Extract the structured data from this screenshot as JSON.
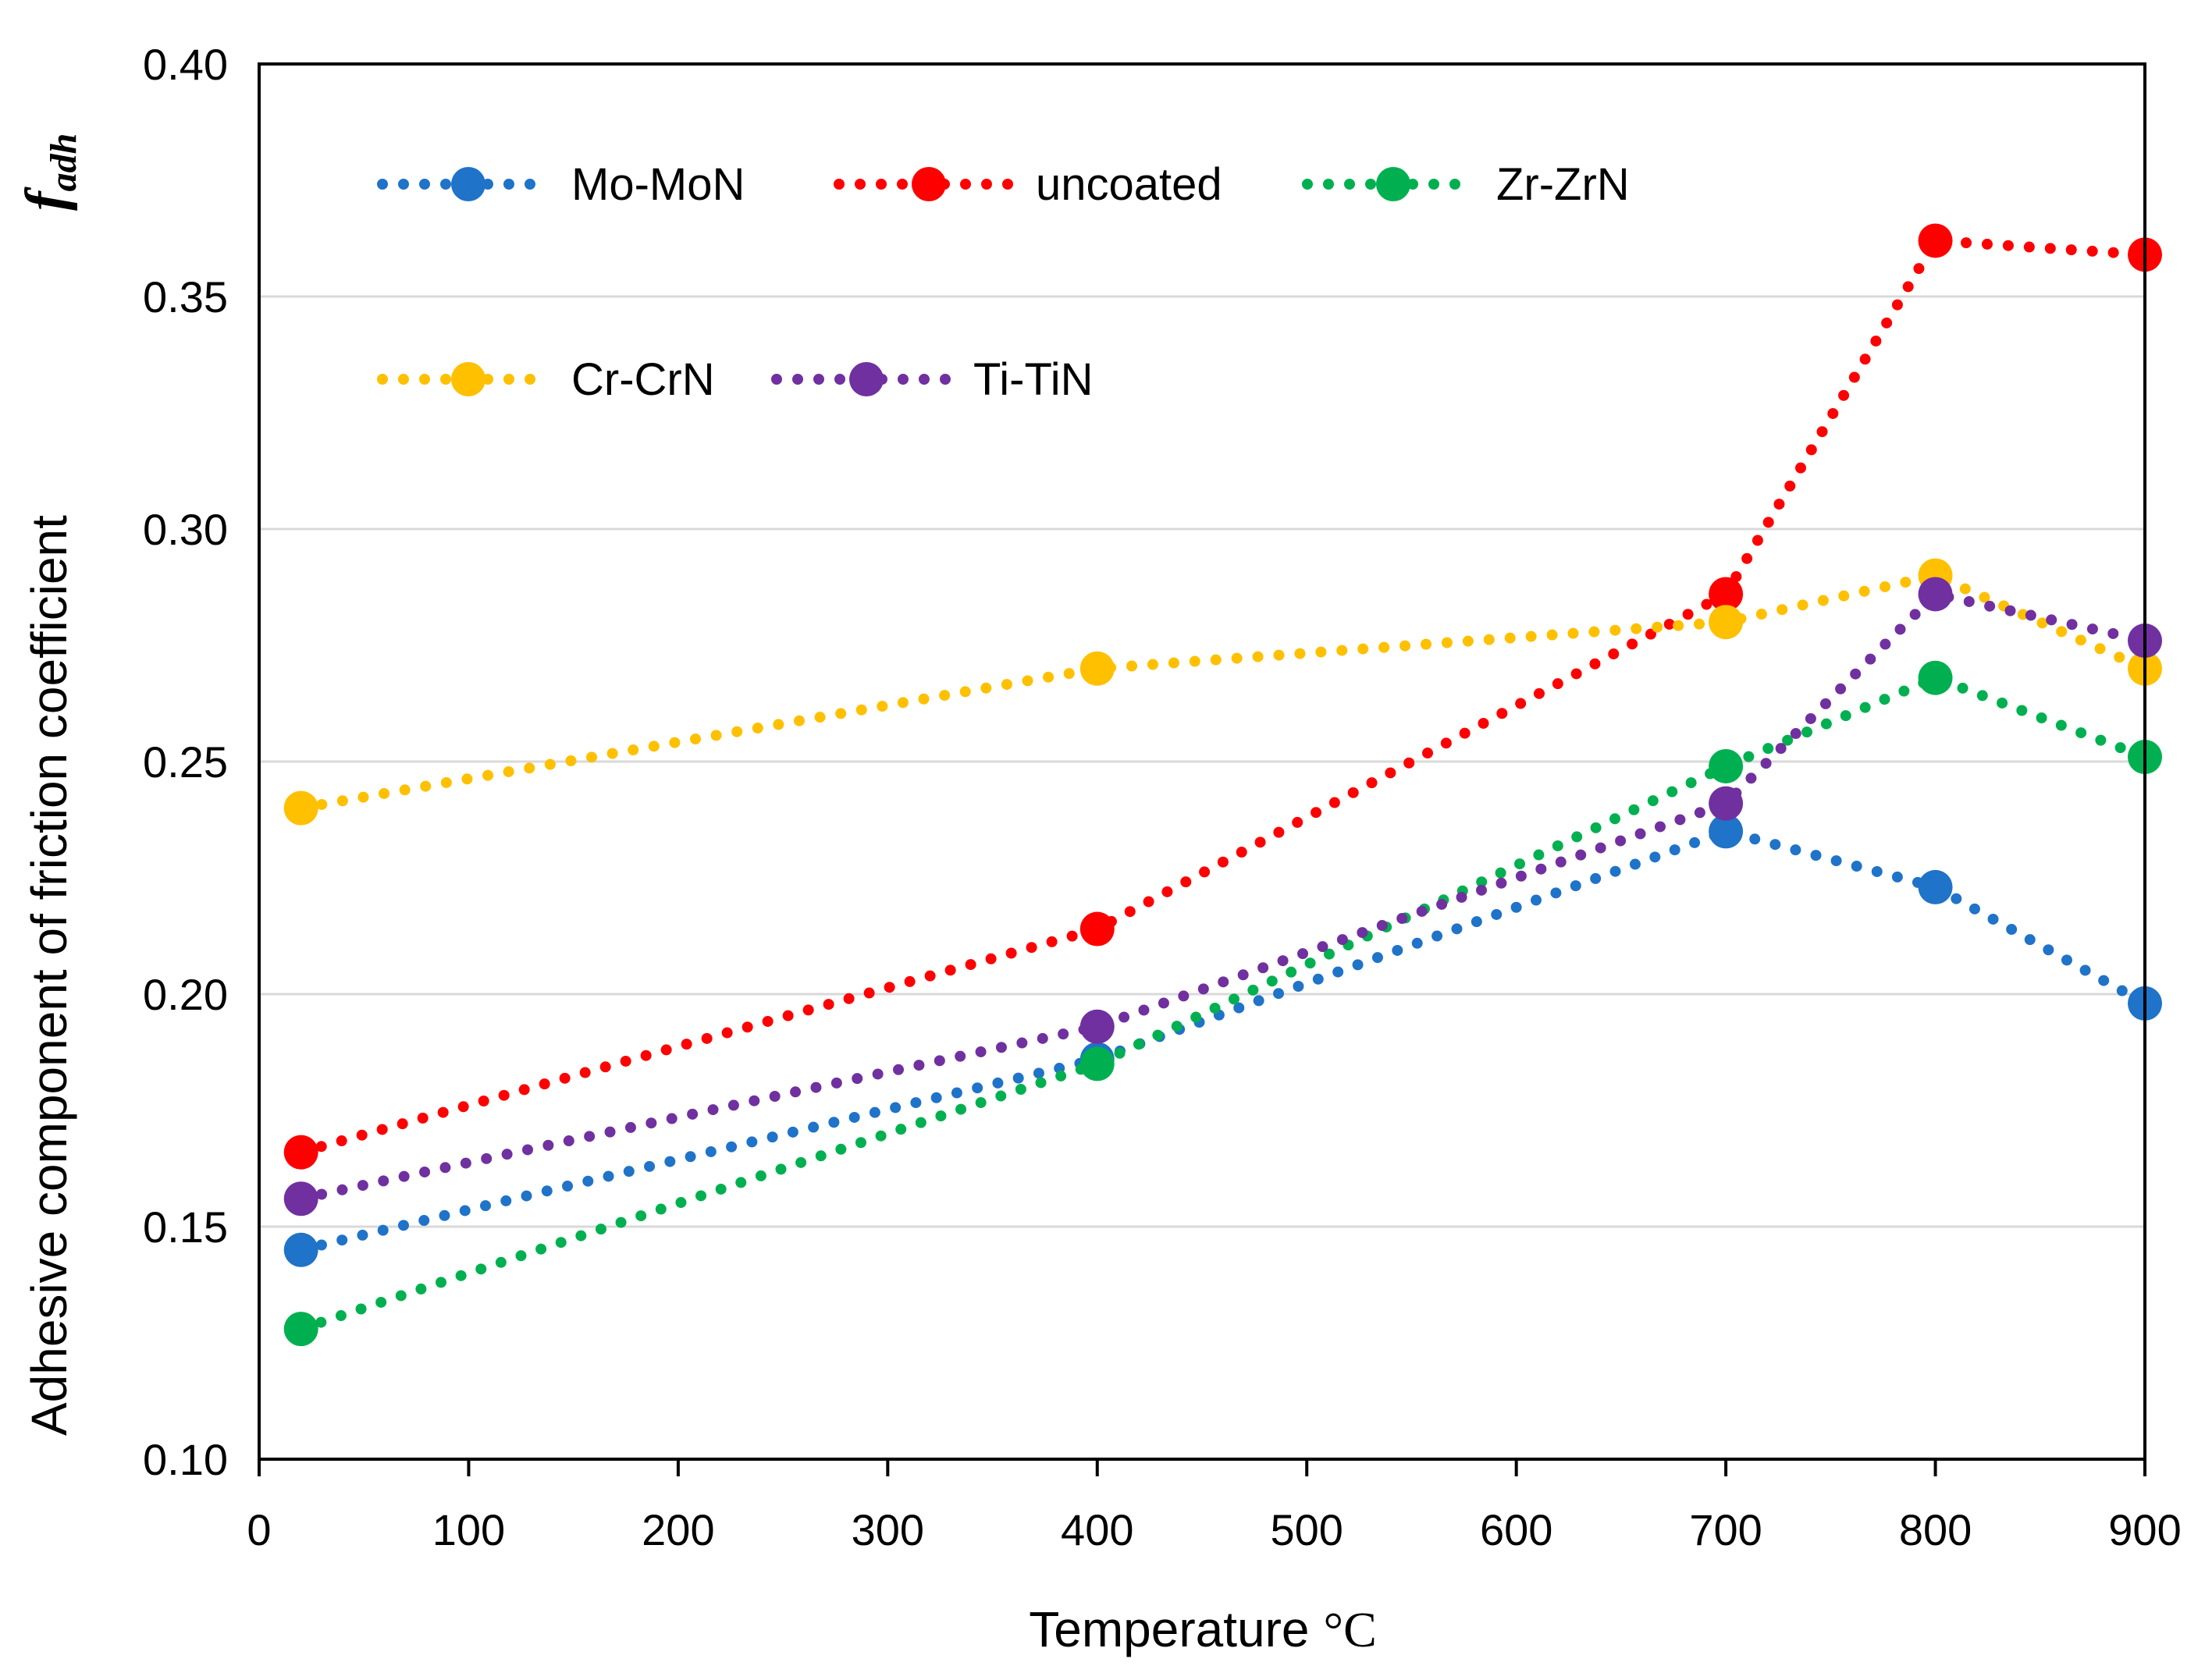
{
  "chart_data": {
    "type": "line",
    "title": "",
    "xlabel": "Temperature",
    "xlabel_unit": "°C",
    "ylabel": "Adhesive component of friction coefficient",
    "ylabel_symbol": "f",
    "ylabel_symbol_sub": "adh",
    "xlim": [
      0,
      900
    ],
    "ylim": [
      0.1,
      0.4
    ],
    "xticks": [
      "0",
      "100",
      "200",
      "300",
      "400",
      "500",
      "600",
      "700",
      "800",
      "900"
    ],
    "yticks": [
      "0.10",
      "0.15",
      "0.20",
      "0.25",
      "0.30",
      "0.35",
      "0.40"
    ],
    "grid": "horizontal",
    "legend_position": "top-left",
    "x": [
      20,
      400,
      700,
      800,
      900
    ],
    "series": [
      {
        "name": "Mo-MoN",
        "color": "#1f73c8",
        "values": [
          0.145,
          0.186,
          0.235,
          0.223,
          0.198
        ]
      },
      {
        "name": "uncoated",
        "color": "#ff0000",
        "values": [
          0.166,
          0.214,
          0.286,
          0.362,
          0.359
        ]
      },
      {
        "name": "Zr-ZrN",
        "color": "#00b050",
        "values": [
          0.128,
          0.185,
          0.249,
          0.268,
          0.251
        ]
      },
      {
        "name": "Cr-CrN",
        "color": "#ffc000",
        "values": [
          0.24,
          0.27,
          0.28,
          0.29,
          0.27
        ]
      },
      {
        "name": "Ti-TiN",
        "color": "#7030a0",
        "values": [
          0.156,
          0.193,
          0.241,
          0.286,
          0.276
        ]
      }
    ]
  }
}
